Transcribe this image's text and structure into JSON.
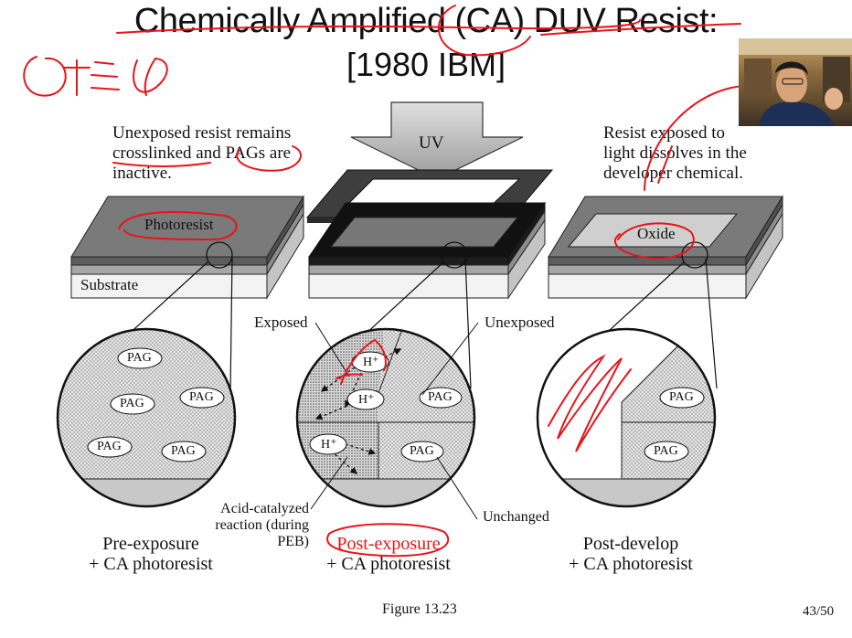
{
  "title": {
    "line1": "Chemically Amplified (CA) DUV Resist:",
    "line2": "[1980 IBM]"
  },
  "left_note": [
    "Unexposed resist remains",
    "crosslinked and PAGs are",
    "inactive."
  ],
  "right_note": [
    "Resist exposed to",
    "light dissolves in the",
    "developer chemical."
  ],
  "uv_label": "UV",
  "labels": {
    "photoresist": "Photoresist",
    "substrate": "Substrate",
    "oxide": "Oxide",
    "exposed": "Exposed",
    "unexposed": "Unexposed",
    "acid": [
      "Acid-catalyzed",
      "reaction (during",
      "PEB)"
    ],
    "unchanged": "Unchanged"
  },
  "pag": "PAG",
  "hplus": "H⁺",
  "captions": {
    "left": [
      "Pre-exposure",
      "+ CA photoresist"
    ],
    "middle": [
      "Post-exposure",
      "+ CA photoresist"
    ],
    "right": [
      "Post-develop",
      "+ CA photoresist"
    ]
  },
  "figure": "Figure 13.23",
  "page_number": "43/50",
  "annotation_color": "#e8141a"
}
